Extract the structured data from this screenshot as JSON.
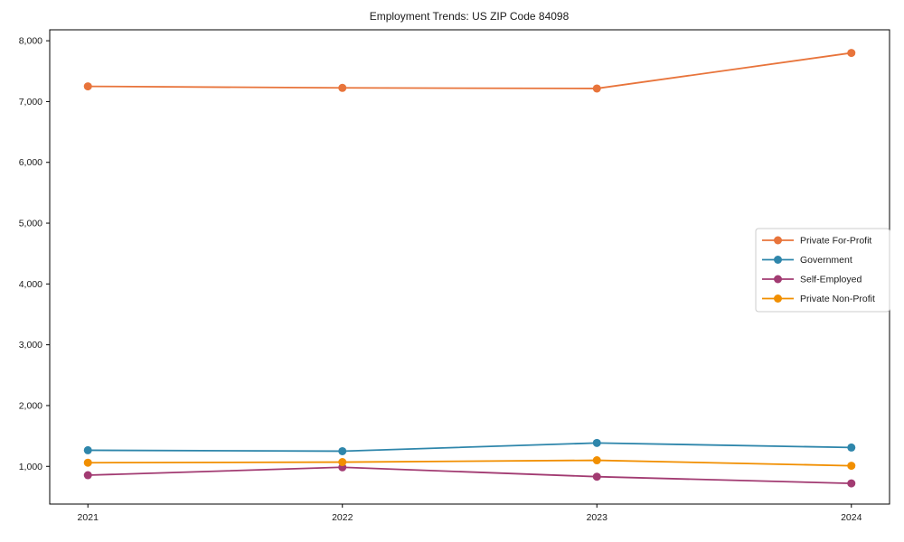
{
  "chart_data": {
    "type": "line",
    "title": "Employment Trends: US ZIP Code 84098",
    "xlabel": "",
    "ylabel": "",
    "x": [
      2021,
      2022,
      2023,
      2024
    ],
    "categories": [
      "2021",
      "2022",
      "2023",
      "2024"
    ],
    "series": [
      {
        "name": "Private For-Profit",
        "color": "#E8743B",
        "values": [
          7250,
          7225,
          7215,
          7800
        ]
      },
      {
        "name": "Government",
        "color": "#2E86AB",
        "values": [
          1265,
          1250,
          1385,
          1310
        ]
      },
      {
        "name": "Self-Employed",
        "color": "#A23B72",
        "values": [
          855,
          985,
          830,
          720
        ]
      },
      {
        "name": "Private Non-Profit",
        "color": "#F18F01",
        "values": [
          1060,
          1070,
          1100,
          1010
        ]
      }
    ],
    "yticks": [
      1000,
      2000,
      3000,
      4000,
      5000,
      6000,
      7000,
      8000
    ],
    "ytick_labels": [
      "1,000",
      "2,000",
      "3,000",
      "4,000",
      "5,000",
      "6,000",
      "7,000",
      "8,000"
    ],
    "xlim": [
      2020.85,
      2024.15
    ],
    "ylim": [
      380,
      8180
    ],
    "grid": false,
    "legend_position": "center right",
    "axis_color": "#000000",
    "legend_border_color": "#cccccc",
    "background_color": "#ffffff"
  }
}
